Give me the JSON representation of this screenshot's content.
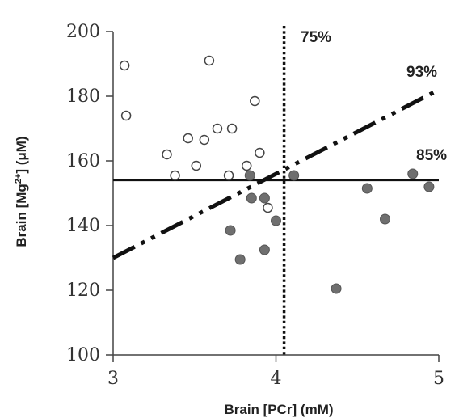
{
  "chart_data": {
    "type": "scatter",
    "title": "",
    "xlabel": "Brain [PCr] (mM)",
    "ylabel_parts": {
      "pre": "Brain [Mg",
      "sup": "2+",
      "post": "] (μM)"
    },
    "xlim": [
      3,
      5
    ],
    "ylim": [
      100,
      200
    ],
    "x_ticks": [
      "3",
      "4",
      "5"
    ],
    "y_ticks": [
      "100",
      "120",
      "140",
      "160",
      "180",
      "200"
    ],
    "grid": false,
    "colors": {
      "open_stroke": "#444444",
      "filled": "#6f6f6f",
      "filled_stroke": "#555555",
      "axis": "#444444",
      "line": "#111111"
    },
    "series": [
      {
        "marker": "open",
        "points": [
          [
            3.07,
            189.5
          ],
          [
            3.08,
            174
          ],
          [
            3.33,
            162
          ],
          [
            3.38,
            155.5
          ],
          [
            3.46,
            167
          ],
          [
            3.51,
            158.5
          ],
          [
            3.56,
            166.5
          ],
          [
            3.59,
            191
          ],
          [
            3.64,
            170
          ],
          [
            3.71,
            155.5
          ],
          [
            3.73,
            170
          ],
          [
            3.82,
            158.5
          ],
          [
            3.87,
            178.5
          ],
          [
            3.9,
            162.5
          ],
          [
            3.95,
            145.5
          ]
        ]
      },
      {
        "marker": "filled",
        "points": [
          [
            3.72,
            138.5
          ],
          [
            3.78,
            129.5
          ],
          [
            3.84,
            155.5
          ],
          [
            3.85,
            148.5
          ],
          [
            3.93,
            148.5
          ],
          [
            3.93,
            132.5
          ],
          [
            4.0,
            141.5
          ],
          [
            4.11,
            155.5
          ],
          [
            4.37,
            120.5
          ],
          [
            4.56,
            151.5
          ],
          [
            4.67,
            142
          ],
          [
            4.84,
            156
          ],
          [
            4.94,
            152
          ]
        ]
      }
    ],
    "reference_lines": [
      {
        "kind": "horizontal",
        "y": 154,
        "style": "solid",
        "label": "85%"
      },
      {
        "kind": "vertical",
        "x": 4.05,
        "style": "dotted",
        "label": "75%"
      },
      {
        "kind": "diagonal",
        "from": [
          3,
          130
        ],
        "to": [
          5,
          182
        ],
        "style": "dash-dot",
        "label": "93%"
      }
    ]
  }
}
